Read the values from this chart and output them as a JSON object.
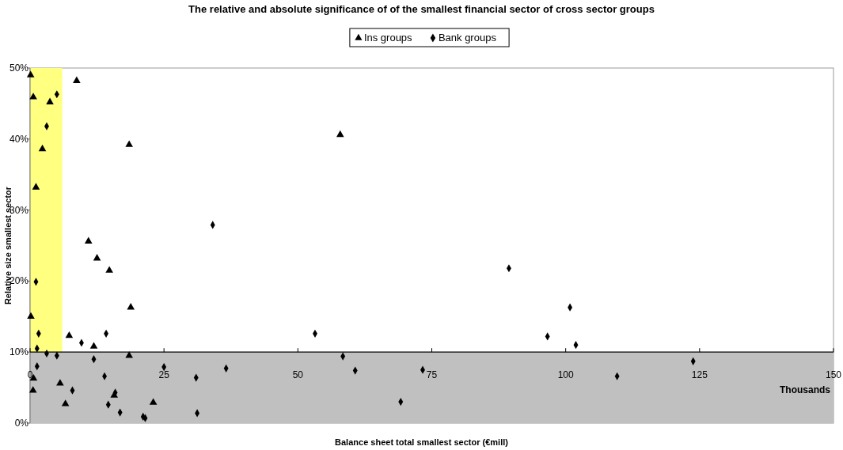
{
  "chart_data": {
    "type": "scatter",
    "title": "The relative and absolute significance of of the smallest financial sector of cross sector groups",
    "xlabel": "Balance sheet total smallest sector (€mill)",
    "ylabel": "Relative size smallest sector",
    "annotations": [
      "Thousands"
    ],
    "xlim": [
      0,
      150
    ],
    "xticks": [
      0,
      25,
      50,
      75,
      100,
      125,
      150
    ],
    "ylim": [
      0,
      50
    ],
    "yticks": [
      {
        "value": 0,
        "label": "0%"
      },
      {
        "value": 10,
        "label": "10%"
      },
      {
        "value": 20,
        "label": "20%"
      },
      {
        "value": 30,
        "label": "30%"
      },
      {
        "value": 40,
        "label": "40%"
      },
      {
        "value": 50,
        "label": "50%"
      }
    ],
    "grid": false,
    "legend": "top",
    "bands": [
      {
        "axis": "x",
        "from": 0,
        "to": 6,
        "color": "#ffff80"
      },
      {
        "axis": "y",
        "from": 0,
        "to": 10,
        "color": "#c0c0c0"
      }
    ],
    "series": [
      {
        "name": "Ins groups",
        "color": "#000000",
        "marker": "triangle",
        "x": [
          0.1,
          8.7,
          0.6,
          3.7,
          2.3,
          18.5,
          1.1,
          10.9,
          12.5,
          14.8,
          18.8,
          0.15,
          7.3,
          11.9,
          18.5,
          0.65,
          0.55,
          5.6,
          6.6,
          15.7,
          23.0,
          57.9
        ],
        "values": [
          49.0,
          48.2,
          45.9,
          45.2,
          38.6,
          39.2,
          33.2,
          25.6,
          23.2,
          21.5,
          16.3,
          15.0,
          12.3,
          10.8,
          9.5,
          6.3,
          4.6,
          5.6,
          2.7,
          3.9,
          2.9,
          40.6
        ]
      },
      {
        "name": "Bank groups",
        "color": "#000000",
        "marker": "diamond",
        "x": [
          5.0,
          3.1,
          1.1,
          1.6,
          14.2,
          9.6,
          1.3,
          3.1,
          5.0,
          11.9,
          1.3,
          13.9,
          7.9,
          15.9,
          14.6,
          16.8,
          21.1,
          21.5,
          31.0,
          31.2,
          34.1,
          53.2,
          58.4,
          36.6,
          60.7,
          73.3,
          69.2,
          25.0,
          89.4,
          100.8,
          96.6,
          101.9,
          123.8,
          109.6
        ],
        "values": [
          46.3,
          41.8,
          19.9,
          12.6,
          12.6,
          11.3,
          10.5,
          9.8,
          9.5,
          9.0,
          8.0,
          6.6,
          4.6,
          4.3,
          2.6,
          1.5,
          0.9,
          0.7,
          6.4,
          1.4,
          27.9,
          12.6,
          9.4,
          7.7,
          7.4,
          7.5,
          3.0,
          7.9,
          21.8,
          16.3,
          12.2,
          11.0,
          8.7,
          6.6
        ]
      }
    ]
  }
}
